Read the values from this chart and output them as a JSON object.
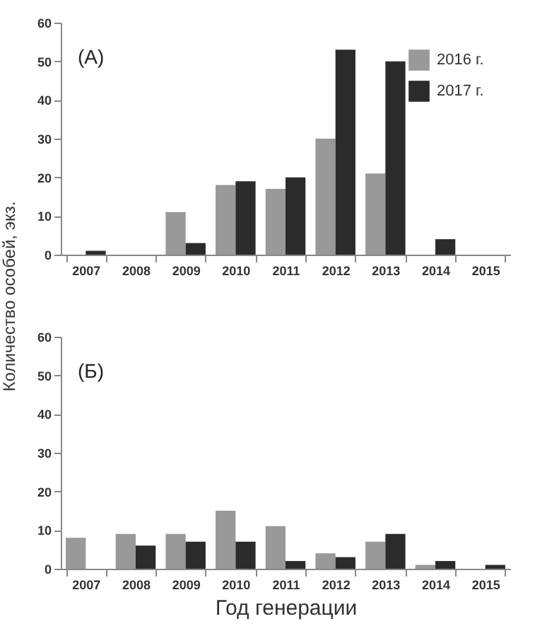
{
  "chart_data": [
    {
      "type": "bar",
      "annotations": [
        "(А)"
      ],
      "ylabel": "Количество особей, экз.",
      "categories": [
        "2007",
        "2008",
        "2009",
        "2010",
        "2011",
        "2012",
        "2013",
        "2014",
        "2015"
      ],
      "series": [
        {
          "name": "2016 г.",
          "color": "#999999",
          "values": [
            null,
            null,
            11,
            18,
            17,
            30,
            21,
            null,
            null
          ]
        },
        {
          "name": "2017 г.",
          "color": "#2b2b2b",
          "values": [
            1,
            null,
            3,
            19,
            20,
            53,
            50,
            4,
            null
          ]
        }
      ],
      "ylim": [
        0,
        60
      ],
      "yticks": [
        0,
        10,
        20,
        30,
        40,
        50,
        60
      ],
      "legend": "top right"
    },
    {
      "type": "bar",
      "annotations": [
        "(Б)"
      ],
      "xlabel": "Год генерации",
      "categories": [
        "2007",
        "2008",
        "2009",
        "2010",
        "2011",
        "2012",
        "2013",
        "2014",
        "2015"
      ],
      "series": [
        {
          "color": "#999999",
          "values": [
            8,
            9,
            9,
            15,
            11,
            4,
            7,
            1,
            null
          ]
        },
        {
          "color": "#2b2b2b",
          "values": [
            null,
            6,
            7,
            7,
            2,
            3,
            9,
            2,
            1
          ]
        }
      ],
      "ylim": [
        0,
        60
      ],
      "yticks": [
        0,
        10,
        20,
        30,
        40,
        50,
        60
      ]
    }
  ]
}
